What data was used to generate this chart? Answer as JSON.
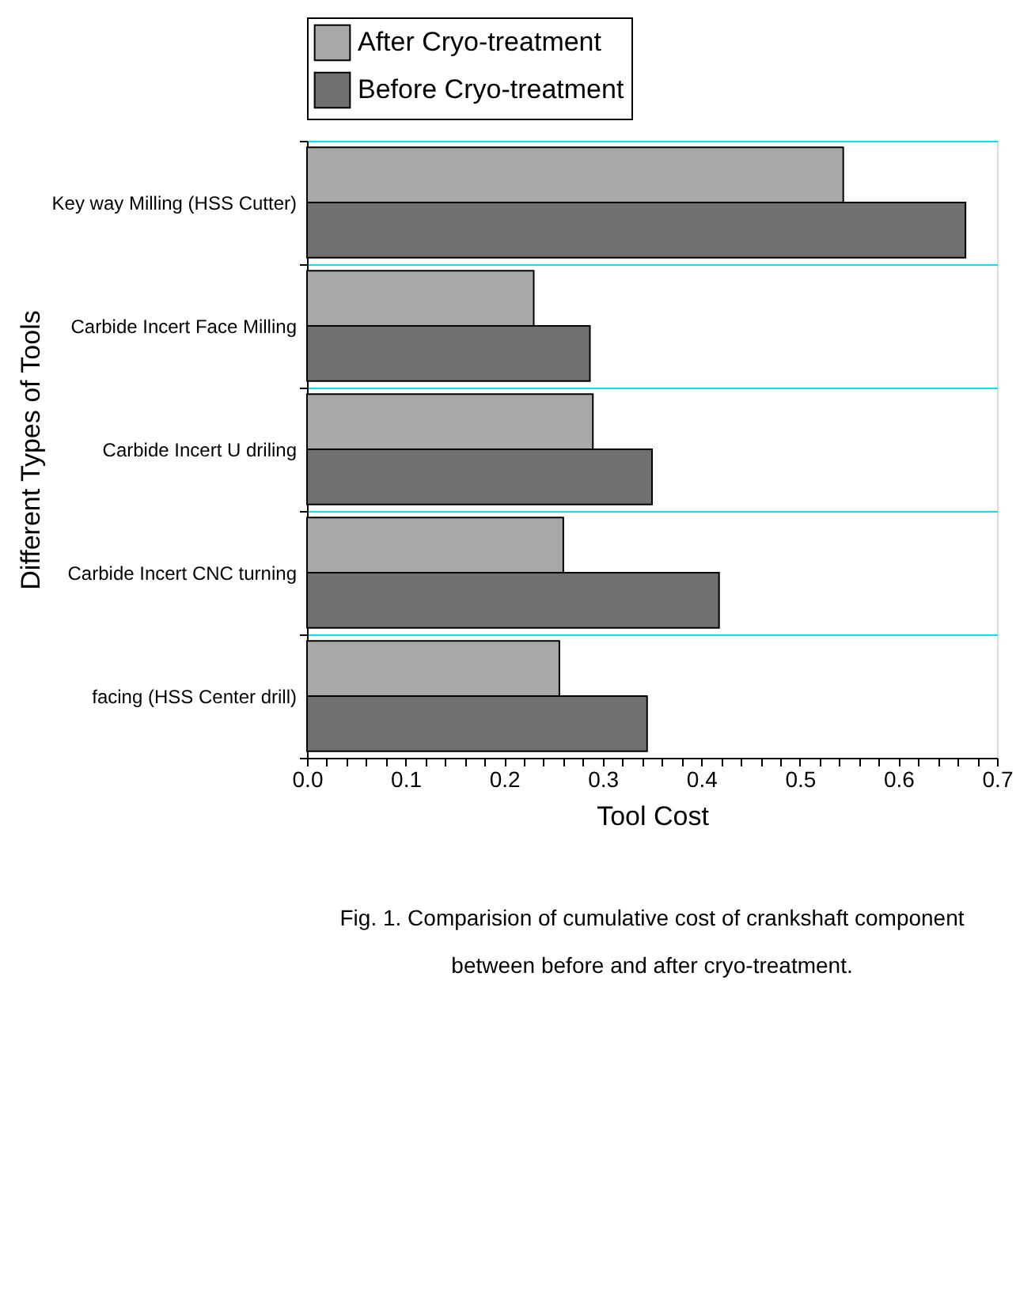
{
  "chart_data": {
    "type": "bar",
    "orientation": "horizontal",
    "categories": [
      "Key way Milling (HSS Cutter)",
      "Carbide Incert Face Milling",
      "Carbide Incert U driling",
      "Carbide Incert CNC turning",
      "facing (HSS Center drill)"
    ],
    "series": [
      {
        "name": "After Cryo-treatment",
        "color": "#a8a8a8",
        "values": [
          0.544,
          0.23,
          0.29,
          0.26,
          0.256
        ]
      },
      {
        "name": "Before Cryo-treatment",
        "color": "#707070",
        "values": [
          0.668,
          0.287,
          0.35,
          0.418,
          0.345
        ]
      }
    ],
    "xlabel": "Tool Cost",
    "ylabel": "Different Types of Tools",
    "xlim": [
      0,
      0.7
    ],
    "xticks": [
      {
        "value": 0,
        "label": "0.0"
      },
      {
        "value": 0.02,
        "label": null
      },
      {
        "value": 0.04,
        "label": null
      },
      {
        "value": 0.06,
        "label": null
      },
      {
        "value": 0.08,
        "label": null
      },
      {
        "value": 0.1,
        "label": "0.1"
      },
      {
        "value": 0.12,
        "label": null
      },
      {
        "value": 0.14,
        "label": null
      },
      {
        "value": 0.16,
        "label": null
      },
      {
        "value": 0.18,
        "label": null
      },
      {
        "value": 0.2,
        "label": "0.2"
      },
      {
        "value": 0.22,
        "label": null
      },
      {
        "value": 0.24,
        "label": null
      },
      {
        "value": 0.26,
        "label": null
      },
      {
        "value": 0.28,
        "label": null
      },
      {
        "value": 0.3,
        "label": "0.3"
      },
      {
        "value": 0.32,
        "label": null
      },
      {
        "value": 0.34,
        "label": null
      },
      {
        "value": 0.36,
        "label": null
      },
      {
        "value": 0.38,
        "label": null
      },
      {
        "value": 0.4,
        "label": "0.4"
      },
      {
        "value": 0.42,
        "label": null
      },
      {
        "value": 0.44,
        "label": null
      },
      {
        "value": 0.46,
        "label": null
      },
      {
        "value": 0.48,
        "label": null
      },
      {
        "value": 0.5,
        "label": "0.5"
      },
      {
        "value": 0.52,
        "label": null
      },
      {
        "value": 0.54,
        "label": null
      },
      {
        "value": 0.56,
        "label": null
      },
      {
        "value": 0.58,
        "label": null
      },
      {
        "value": 0.6,
        "label": "0.6"
      },
      {
        "value": 0.62,
        "label": null
      },
      {
        "value": 0.64,
        "label": null
      },
      {
        "value": 0.66,
        "label": null
      },
      {
        "value": 0.68,
        "label": null
      },
      {
        "value": 0.7,
        "label": "0.7"
      }
    ],
    "grid": "y",
    "legend": "top",
    "annotations": [
      "Fig. 1. Comparision of cumulative cost of crankshaft component between before and after cryo-treatment."
    ]
  }
}
